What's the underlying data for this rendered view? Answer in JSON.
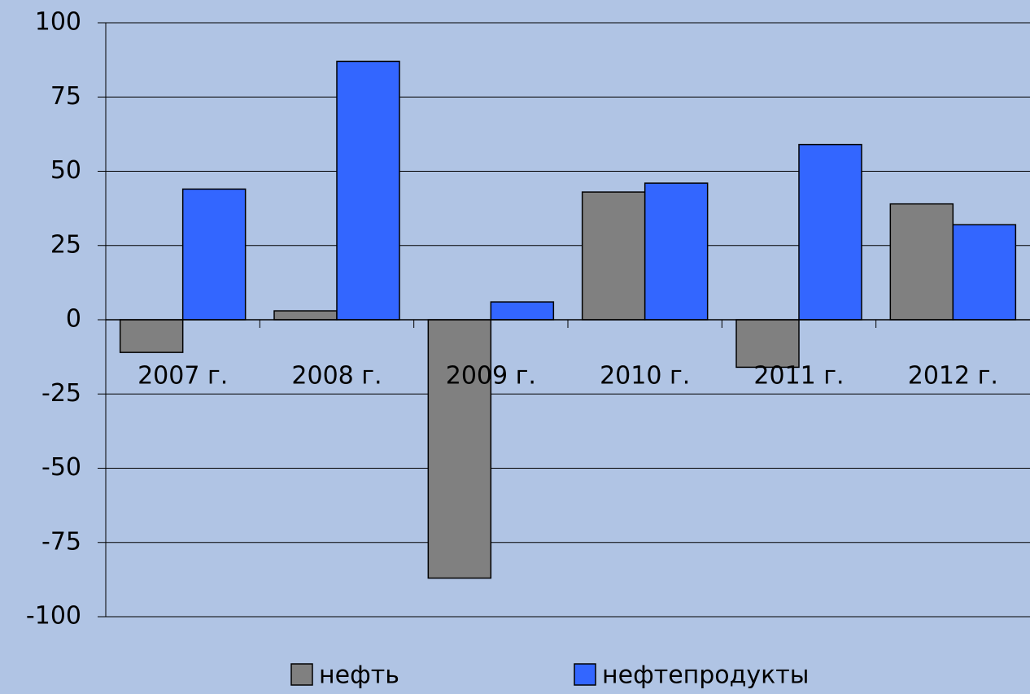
{
  "chart_data": {
    "type": "bar",
    "categories": [
      "2007 г.",
      "2008 г.",
      "2009 г.",
      "2010 г.",
      "2011 г.",
      "2012 г."
    ],
    "series": [
      {
        "name": "нефть",
        "color": "#808080",
        "values": [
          -11,
          3,
          -87,
          43,
          -16,
          39
        ]
      },
      {
        "name": "нефтепродукты",
        "color": "#3366ff",
        "values": [
          44,
          87,
          6,
          46,
          59,
          32
        ]
      }
    ],
    "ylim": [
      -100,
      100
    ],
    "yticks": [
      -100,
      -75,
      -50,
      -25,
      0,
      25,
      50,
      75,
      100
    ],
    "grid": true,
    "legend": "bottom"
  }
}
